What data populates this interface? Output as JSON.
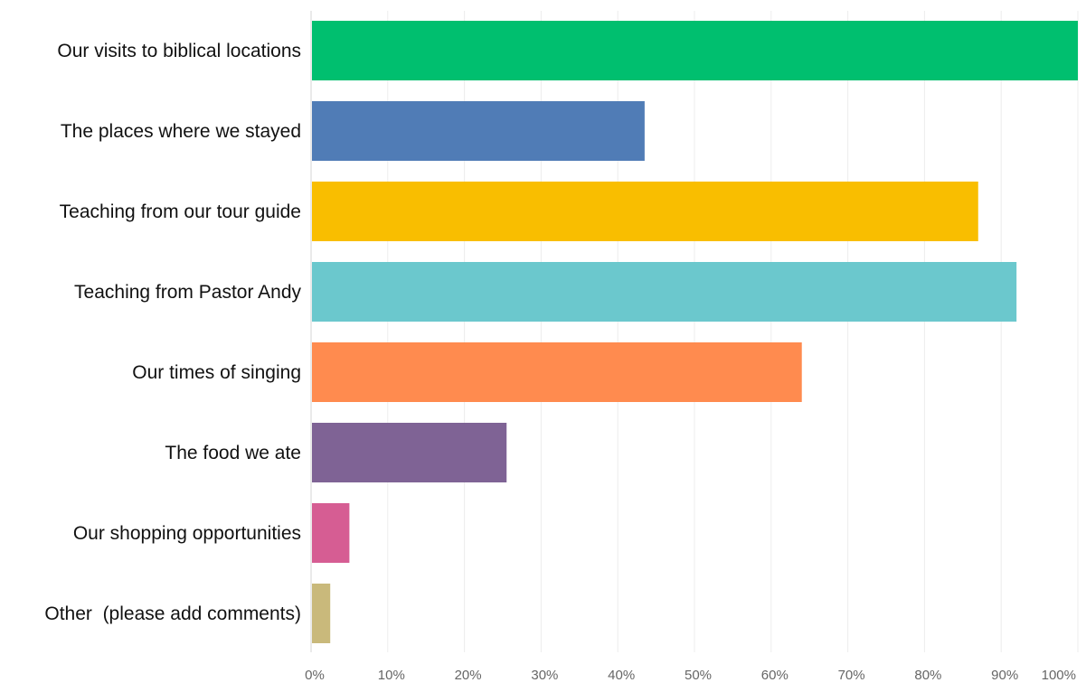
{
  "chart_data": {
    "type": "bar",
    "orientation": "horizontal",
    "categories": [
      "Our visits to biblical locations",
      "The places where we stayed",
      "Teaching from our tour guide",
      "Teaching from Pastor Andy",
      "Our times of singing",
      "The food we ate",
      "Our shopping opportunities",
      "Other  (please add comments)"
    ],
    "values": [
      100,
      43.5,
      87,
      92,
      64,
      25.5,
      5,
      2.5
    ],
    "colors": [
      "#00bf6f",
      "#507cb6",
      "#f9be00",
      "#6bc8cd",
      "#ff8b4f",
      "#7f6395",
      "#d65d93",
      "#c9b97b"
    ],
    "xlim": [
      0,
      100
    ],
    "xticks": [
      "0%",
      "10%",
      "20%",
      "30%",
      "40%",
      "50%",
      "60%",
      "70%",
      "80%",
      "90%",
      "100%"
    ],
    "grid": true,
    "title": "",
    "xlabel": "",
    "ylabel": ""
  }
}
